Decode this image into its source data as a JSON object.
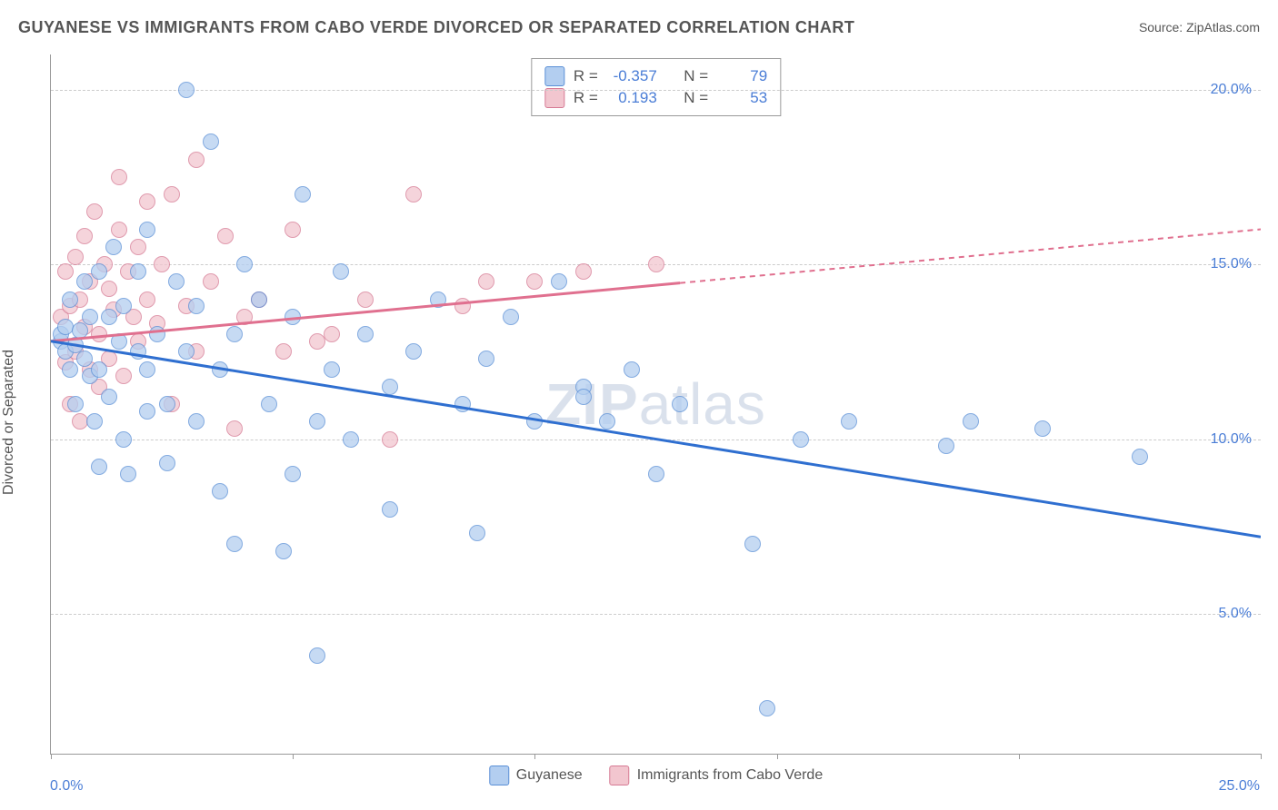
{
  "header": {
    "title": "GUYANESE VS IMMIGRANTS FROM CABO VERDE DIVORCED OR SEPARATED CORRELATION CHART",
    "source_prefix": "Source: ",
    "source": "ZipAtlas.com"
  },
  "chart": {
    "type": "scatter",
    "watermark": "ZIPatlas",
    "y_axis_label": "Divorced or Separated",
    "xlim": [
      0,
      25
    ],
    "ylim": [
      1,
      21
    ],
    "x_ticks": [
      0,
      5,
      10,
      15,
      20,
      25
    ],
    "y_ticks": [
      5,
      10,
      15,
      20
    ],
    "y_tick_labels": [
      "5.0%",
      "10.0%",
      "15.0%",
      "20.0%"
    ],
    "x_corner_min": "0.0%",
    "x_corner_max": "25.0%",
    "plot_background": "#ffffff",
    "grid_color": "#cccccc",
    "axis_color": "#999999",
    "label_color_value": "#4a7dd6",
    "series": {
      "blue": {
        "name": "Guyanese",
        "color_fill": "#b3cef0",
        "color_stroke": "#5a8fd6",
        "R": "-0.357",
        "N": "79",
        "trend": {
          "x1": 0,
          "y1": 12.8,
          "x2": 25,
          "y2": 7.2,
          "solid_end_x": 25
        },
        "points": [
          [
            0.2,
            12.8
          ],
          [
            0.2,
            13.0
          ],
          [
            0.3,
            12.5
          ],
          [
            0.3,
            13.2
          ],
          [
            0.4,
            12.0
          ],
          [
            0.4,
            14.0
          ],
          [
            0.5,
            12.7
          ],
          [
            0.5,
            11.0
          ],
          [
            0.6,
            13.1
          ],
          [
            0.7,
            12.3
          ],
          [
            0.7,
            14.5
          ],
          [
            0.8,
            11.8
          ],
          [
            0.8,
            13.5
          ],
          [
            0.9,
            10.5
          ],
          [
            1.0,
            12.0
          ],
          [
            1.0,
            14.8
          ],
          [
            1.0,
            9.2
          ],
          [
            1.2,
            13.5
          ],
          [
            1.2,
            11.2
          ],
          [
            1.3,
            15.5
          ],
          [
            1.4,
            12.8
          ],
          [
            1.5,
            10.0
          ],
          [
            1.5,
            13.8
          ],
          [
            1.6,
            9.0
          ],
          [
            1.8,
            12.5
          ],
          [
            1.8,
            14.8
          ],
          [
            2.0,
            10.8
          ],
          [
            2.0,
            16.0
          ],
          [
            2.0,
            12.0
          ],
          [
            2.2,
            13.0
          ],
          [
            2.4,
            11.0
          ],
          [
            2.4,
            9.3
          ],
          [
            2.6,
            14.5
          ],
          [
            2.8,
            20.0
          ],
          [
            2.8,
            12.5
          ],
          [
            3.0,
            13.8
          ],
          [
            3.0,
            10.5
          ],
          [
            3.3,
            18.5
          ],
          [
            3.5,
            8.5
          ],
          [
            3.5,
            12.0
          ],
          [
            3.8,
            13.0
          ],
          [
            3.8,
            7.0
          ],
          [
            4.0,
            15.0
          ],
          [
            4.3,
            14.0
          ],
          [
            4.5,
            11.0
          ],
          [
            4.8,
            6.8
          ],
          [
            5.0,
            13.5
          ],
          [
            5.0,
            9.0
          ],
          [
            5.2,
            17.0
          ],
          [
            5.5,
            10.5
          ],
          [
            5.5,
            3.8
          ],
          [
            5.8,
            12.0
          ],
          [
            6.0,
            14.8
          ],
          [
            6.2,
            10.0
          ],
          [
            6.5,
            13.0
          ],
          [
            7.0,
            11.5
          ],
          [
            7.0,
            8.0
          ],
          [
            7.5,
            12.5
          ],
          [
            8.0,
            14.0
          ],
          [
            8.5,
            11.0
          ],
          [
            8.8,
            7.3
          ],
          [
            9.0,
            12.3
          ],
          [
            9.5,
            13.5
          ],
          [
            10.0,
            10.5
          ],
          [
            10.5,
            14.5
          ],
          [
            11.0,
            11.5
          ],
          [
            11.0,
            11.2
          ],
          [
            11.5,
            10.5
          ],
          [
            12.0,
            12.0
          ],
          [
            12.5,
            9.0
          ],
          [
            13.0,
            11.0
          ],
          [
            14.5,
            7.0
          ],
          [
            14.8,
            2.3
          ],
          [
            15.5,
            10.0
          ],
          [
            16.5,
            10.5
          ],
          [
            18.5,
            9.8
          ],
          [
            19.0,
            10.5
          ],
          [
            20.5,
            10.3
          ],
          [
            22.5,
            9.5
          ]
        ]
      },
      "pink": {
        "name": "Immigrants from Cabo Verde",
        "color_fill": "#f2c6cf",
        "color_stroke": "#d67a94",
        "R": "0.193",
        "N": "53",
        "trend": {
          "x1": 0,
          "y1": 12.8,
          "x2": 25,
          "y2": 16.0,
          "solid_end_x": 13
        },
        "points": [
          [
            0.2,
            13.5
          ],
          [
            0.3,
            12.2
          ],
          [
            0.3,
            14.8
          ],
          [
            0.4,
            11.0
          ],
          [
            0.4,
            13.8
          ],
          [
            0.5,
            15.2
          ],
          [
            0.5,
            12.5
          ],
          [
            0.6,
            14.0
          ],
          [
            0.6,
            10.5
          ],
          [
            0.7,
            13.2
          ],
          [
            0.7,
            15.8
          ],
          [
            0.8,
            12.0
          ],
          [
            0.8,
            14.5
          ],
          [
            0.9,
            16.5
          ],
          [
            1.0,
            13.0
          ],
          [
            1.0,
            11.5
          ],
          [
            1.1,
            15.0
          ],
          [
            1.2,
            14.3
          ],
          [
            1.2,
            12.3
          ],
          [
            1.3,
            13.7
          ],
          [
            1.4,
            16.0
          ],
          [
            1.4,
            17.5
          ],
          [
            1.5,
            11.8
          ],
          [
            1.6,
            14.8
          ],
          [
            1.7,
            13.5
          ],
          [
            1.8,
            15.5
          ],
          [
            1.8,
            12.8
          ],
          [
            2.0,
            14.0
          ],
          [
            2.0,
            16.8
          ],
          [
            2.2,
            13.3
          ],
          [
            2.3,
            15.0
          ],
          [
            2.5,
            11.0
          ],
          [
            2.5,
            17.0
          ],
          [
            2.8,
            13.8
          ],
          [
            3.0,
            18.0
          ],
          [
            3.0,
            12.5
          ],
          [
            3.3,
            14.5
          ],
          [
            3.6,
            15.8
          ],
          [
            3.8,
            10.3
          ],
          [
            4.0,
            13.5
          ],
          [
            4.3,
            14.0
          ],
          [
            4.8,
            12.5
          ],
          [
            5.0,
            16.0
          ],
          [
            5.5,
            12.8
          ],
          [
            5.8,
            13.0
          ],
          [
            6.5,
            14.0
          ],
          [
            7.0,
            10.0
          ],
          [
            7.5,
            17.0
          ],
          [
            8.5,
            13.8
          ],
          [
            9.0,
            14.5
          ],
          [
            10.0,
            14.5
          ],
          [
            11.0,
            14.8
          ],
          [
            12.5,
            15.0
          ]
        ]
      }
    },
    "legend": {
      "blue_label": "Guyanese",
      "pink_label": "Immigrants from Cabo Verde"
    },
    "stats_labels": {
      "R": "R =",
      "N": "N ="
    }
  }
}
